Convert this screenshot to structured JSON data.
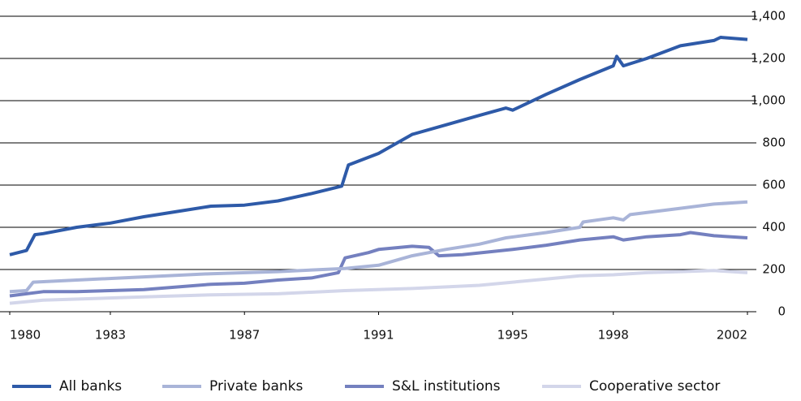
{
  "chart_data": {
    "type": "line",
    "xlim": [
      1980,
      2002
    ],
    "xticks": [
      1980,
      1983,
      1987,
      1991,
      1995,
      1998,
      2002
    ],
    "ylim": [
      0,
      1400
    ],
    "yticks": [
      0,
      {
        "value": 200,
        "label": "200"
      },
      400,
      600,
      800,
      {
        "value": 1000,
        "label": "1,000"
      },
      {
        "value": 1200,
        "label": "1,200"
      },
      {
        "value": 1400,
        "label": "1,400"
      }
    ],
    "grid": true,
    "legend": "bottom",
    "series": [
      {
        "name": "All banks",
        "color": "#2e5aa8",
        "x": [
          1980,
          1980.5,
          1980.75,
          1981,
          1982,
          1983,
          1984,
          1985,
          1986,
          1987,
          1988,
          1989,
          1989.9,
          1990.1,
          1991,
          1992,
          1993,
          1994,
          1994.8,
          1995,
          1996,
          1997,
          1998,
          1998.1,
          1998.3,
          1999,
          2000,
          2001,
          2001.2,
          2002
        ],
        "values": [
          270,
          290,
          365,
          370,
          400,
          420,
          450,
          475,
          500,
          505,
          525,
          560,
          595,
          695,
          750,
          840,
          885,
          930,
          965,
          955,
          1030,
          1100,
          1165,
          1210,
          1165,
          1200,
          1260,
          1285,
          1300,
          1290
        ]
      },
      {
        "name": "Private banks",
        "color": "#a9b4d8",
        "x": [
          1980,
          1980.5,
          1980.7,
          1982,
          1984,
          1986,
          1988,
          1990,
          1991,
          1992,
          1993,
          1994,
          1994.8,
          1996,
          1997,
          1997.1,
          1998,
          1998.3,
          1998.5,
          2000,
          2001,
          2002
        ],
        "values": [
          95,
          100,
          140,
          150,
          165,
          180,
          190,
          205,
          220,
          265,
          295,
          320,
          350,
          375,
          400,
          425,
          445,
          435,
          460,
          490,
          510,
          520
        ]
      },
      {
        "name": "S&L institutions",
        "color": "#7480bf",
        "x": [
          1980,
          1981,
          1982,
          1984,
          1986,
          1987,
          1988,
          1989,
          1989.8,
          1990,
          1990.7,
          1991,
          1992,
          1992.5,
          1992.8,
          1993.5,
          1995,
          1996,
          1997,
          1998,
          1998.3,
          1999,
          2000,
          2000.3,
          2001,
          2002
        ],
        "values": [
          75,
          95,
          95,
          105,
          130,
          135,
          150,
          160,
          185,
          255,
          280,
          295,
          310,
          305,
          265,
          270,
          295,
          315,
          340,
          355,
          340,
          355,
          365,
          375,
          360,
          350
        ]
      },
      {
        "name": "Cooperative sector",
        "color": "#d3d6ea",
        "x": [
          1980,
          1981,
          1984,
          1986,
          1988,
          1990,
          1992,
          1994,
          1996,
          1997,
          1998,
          1999,
          2000,
          2001,
          2002
        ],
        "values": [
          40,
          55,
          70,
          80,
          85,
          100,
          110,
          125,
          155,
          170,
          175,
          185,
          190,
          195,
          185
        ]
      }
    ]
  }
}
